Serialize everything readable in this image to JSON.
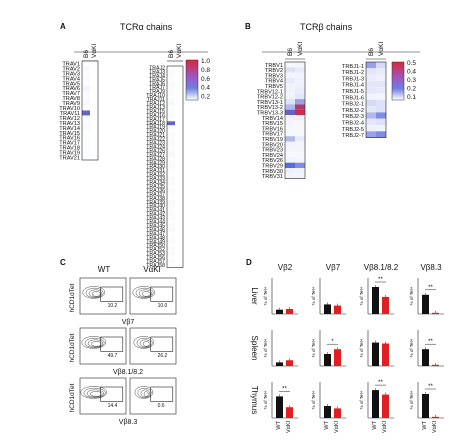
{
  "panels": {
    "a": "A",
    "b": "B",
    "c": "C",
    "d": "D"
  },
  "titles": {
    "tcra": "TCRα chains",
    "tcrb": "TCRβ chains"
  },
  "strain_labels": [
    "B6",
    "VαKI"
  ],
  "panel_c": {
    "col_wt": "WT",
    "col_ki": "VαKI",
    "ylabel": "hCD1dTet",
    "rows": [
      {
        "xlabel": "Vβ7",
        "wt_value": "10.2",
        "ki_value": "10.0"
      },
      {
        "xlabel": "Vβ8.1/8.2",
        "wt_value": "49.7",
        "ki_value": "26.2"
      },
      {
        "xlabel": "Vβ8.3",
        "wt_value": "14.4",
        "ki_value": "0.6"
      }
    ]
  },
  "heatmaps": {
    "trav_labels": [
      "TRAV1",
      "TRAV2",
      "TRAV3",
      "TRAV4",
      "TRAV5",
      "TRAV6",
      "TRAV7",
      "TRAV8",
      "TRAV9",
      "TRAV10",
      "TRAV11",
      "TRAV12",
      "TRAV13",
      "TRAV14",
      "TRAV15",
      "TRAV16",
      "TRAV17",
      "TRAV18",
      "TRAV19",
      "TRAV21"
    ],
    "trav_b6": [
      0.02,
      0.05,
      0.03,
      0.04,
      0.02,
      0.08,
      0.04,
      0.03,
      0.05,
      0.02,
      0.55,
      0.03,
      0.03,
      0.05,
      0.02,
      0.02,
      0.02,
      0.02,
      0.02,
      0.02
    ],
    "traj_labels": [
      "TRAJ2",
      "TRAJ3",
      "TRAJ4",
      "TRAJ5",
      "TRAJ6",
      "TRAJ7",
      "TRAJ9",
      "TRAJ10",
      "TRAJ11",
      "TRAJ12",
      "TRAJ13",
      "TRAJ15",
      "TRAJ16",
      "TRAJ17",
      "TRAJ18",
      "TRAJ19",
      "TRAJ20",
      "TRAJ21",
      "TRAJ22",
      "TRAJ23",
      "TRAJ24",
      "TRAJ26",
      "TRAJ27",
      "TRAJ28",
      "TRAJ29",
      "TRAJ30",
      "TRAJ31",
      "TRAJ32",
      "TRAJ33",
      "TRAJ34",
      "TRAJ35",
      "TRAJ36",
      "TRAJ37",
      "TRAJ38",
      "TRAJ39",
      "TRAJ40",
      "TRAJ41",
      "TRAJ42",
      "TRAJ43",
      "TRAJ44",
      "TRAJ45",
      "TRAJ46",
      "TRAJ47",
      "TRAJ48",
      "TRAJ49",
      "TRAJ50",
      "TRAJ52",
      "TRAJ53",
      "TRAJ56",
      "TRAJ57",
      "TRAJ58"
    ],
    "traj_b6": [
      0.02,
      0.04,
      0.03,
      0.02,
      0.05,
      0.03,
      0.04,
      0.02,
      0.03,
      0.06,
      0.02,
      0.03,
      0.04,
      0.02,
      0.55,
      0.03,
      0.02,
      0.04,
      0.03,
      0.05,
      0.02,
      0.03,
      0.06,
      0.02,
      0.04,
      0.05,
      0.03,
      0.02,
      0.04,
      0.03,
      0.02,
      0.04,
      0.03,
      0.02,
      0.05,
      0.03,
      0.02,
      0.04,
      0.03,
      0.02,
      0.03,
      0.05,
      0.02,
      0.03,
      0.04,
      0.02,
      0.03,
      0.04,
      0.02,
      0.03,
      0.02
    ],
    "trbv_labels": [
      "TRBV1",
      "TRBV2",
      "TRBV3",
      "TRBV4",
      "TRBV5",
      "TRBV12-1",
      "TRBV12-2",
      "TRBV13-1",
      "TRBV13-2",
      "TRBV13-3",
      "TRBV14",
      "TRBV15",
      "TRBV16",
      "TRBV17",
      "TRBV19",
      "TRBV20",
      "TRBV23",
      "TRBV24",
      "TRBV26",
      "TRBV29",
      "TRBV30",
      "TRBV31"
    ],
    "trbv_b6": [
      0.03,
      0.12,
      0.04,
      0.08,
      0.05,
      0.05,
      0.05,
      0.12,
      0.18,
      0.28,
      0.05,
      0.04,
      0.03,
      0.03,
      0.18,
      0.05,
      0.04,
      0.03,
      0.05,
      0.25,
      0.06,
      0.04
    ],
    "trbv_ki": [
      0.04,
      0.08,
      0.05,
      0.05,
      0.06,
      0.08,
      0.1,
      0.2,
      0.42,
      0.48,
      0.06,
      0.03,
      0.03,
      0.03,
      0.08,
      0.04,
      0.04,
      0.03,
      0.04,
      0.22,
      0.05,
      0.04
    ],
    "trbj_labels": [
      "TRBJ1-1",
      "TRBJ1-2",
      "TRBJ1-3",
      "TRBJ1-4",
      "TRBJ1-5",
      "TRBJ1-6",
      "TRBJ2-1",
      "TRBJ2-2",
      "TRBJ2-3",
      "TRBJ2-4",
      "TRBJ2-5",
      "TRBJ2-7"
    ],
    "trbj_b6": [
      0.2,
      0.1,
      0.08,
      0.1,
      0.1,
      0.05,
      0.15,
      0.1,
      0.18,
      0.1,
      0.06,
      0.2
    ],
    "trbj_ki": [
      0.15,
      0.08,
      0.06,
      0.1,
      0.08,
      0.04,
      0.12,
      0.12,
      0.22,
      0.12,
      0.05,
      0.22
    ],
    "scale_a": {
      "ticks": [
        "1.0",
        "0.8",
        "0.6",
        "0.4",
        "0.2"
      ],
      "colors": [
        "#d7263d",
        "#f2f2f2",
        "#5a6ad8"
      ]
    },
    "scale_b": {
      "ticks": [
        "0.5",
        "0.4",
        "0.3",
        "0.2",
        "0.1"
      ],
      "colors": [
        "#d7263d",
        "#f2f2f2",
        "#5a6ad8"
      ]
    }
  },
  "panel_d": {
    "columns": [
      "Vβ2",
      "Vβ7",
      "Vβ8.1/8.2",
      "Vβ8.3"
    ],
    "rows": [
      "Liver",
      "Spleen",
      "Thymus"
    ],
    "ylabel": "% of Tet+",
    "xticks": [
      "WT",
      "VαKI"
    ],
    "sig": "**",
    "sig_single": "*",
    "colors": {
      "wt": "#111111",
      "ki": "#e02020"
    },
    "ymax": [
      10,
      30,
      80,
      30
    ],
    "values": [
      [
        [
          1.2,
          1.4
        ],
        [
          8,
          7
        ],
        [
          60,
          38
        ],
        [
          16,
          1
        ]
      ],
      [
        [
          1.0,
          1.6
        ],
        [
          10,
          14
        ],
        [
          52,
          50
        ],
        [
          14,
          1
        ]
      ],
      [
        [
          6,
          3
        ],
        [
          10,
          8
        ],
        [
          62,
          52
        ],
        [
          20,
          1
        ]
      ]
    ]
  }
}
